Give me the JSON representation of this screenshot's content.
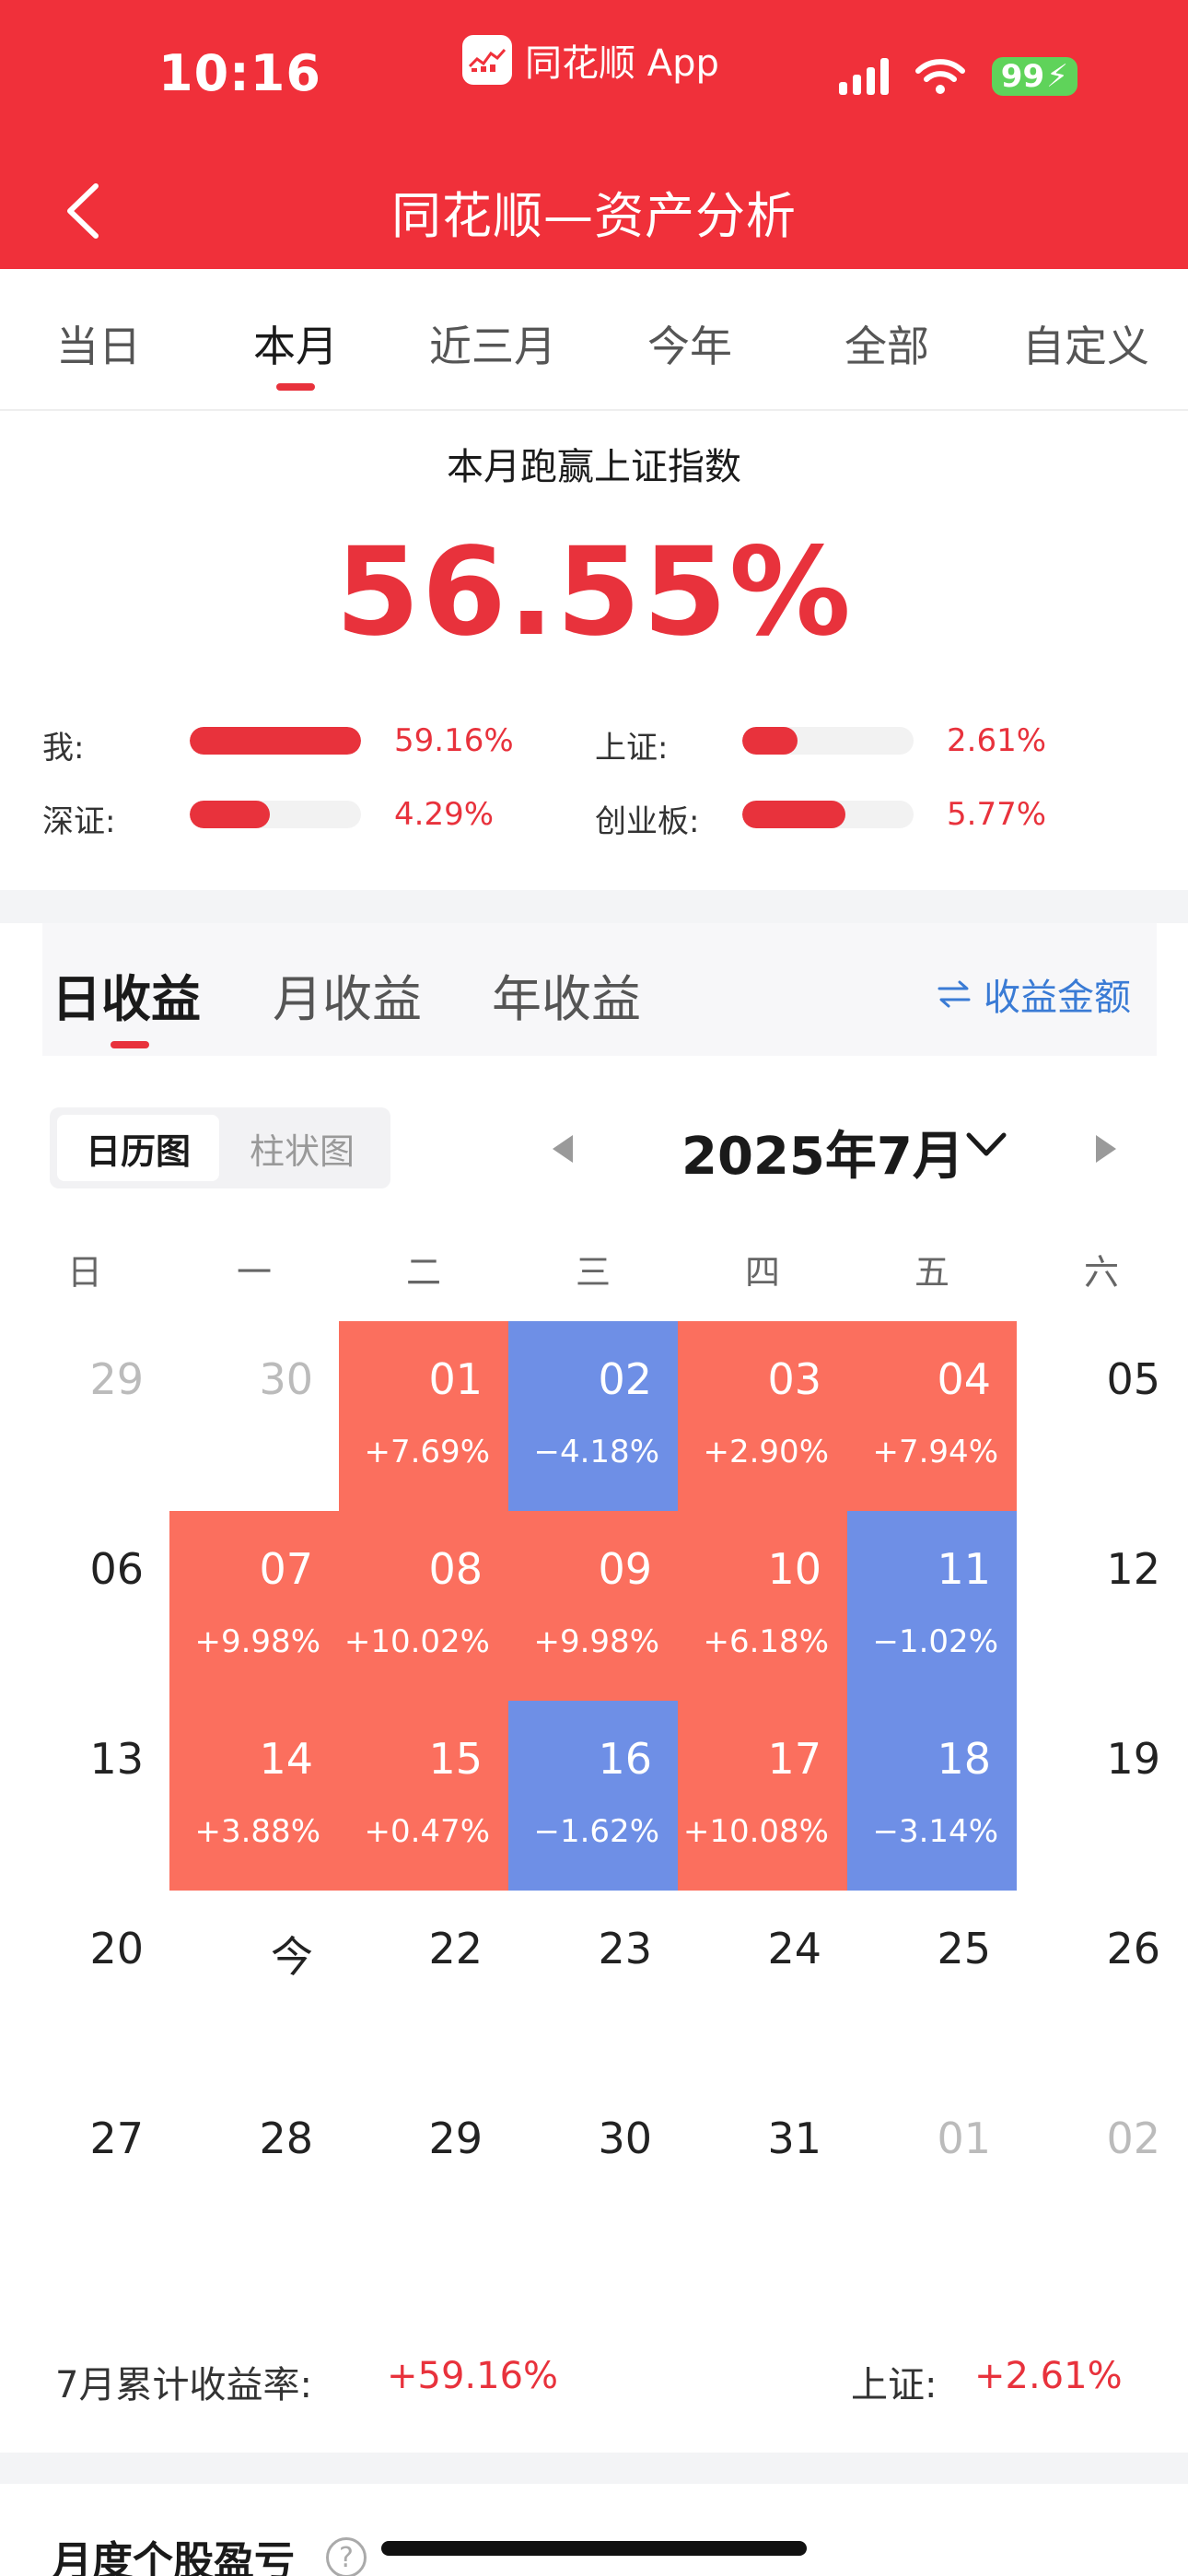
{
  "status_bar": {
    "time": "10:16",
    "app_name": "同花顺 App",
    "battery": "99"
  },
  "nav": {
    "title": "同花顺—资产分析"
  },
  "period_tabs": [
    {
      "label": "当日"
    },
    {
      "label": "本月"
    },
    {
      "label": "近三月"
    },
    {
      "label": "今年"
    },
    {
      "label": "全部"
    },
    {
      "label": "自定义"
    }
  ],
  "period_active": "本月",
  "comparison": {
    "title": "本月跑赢上证指数",
    "headline": "56.55%",
    "items": [
      {
        "label": "我:",
        "value": "59.16%",
        "level": 1.0
      },
      {
        "label": "上证:",
        "value": "2.61%",
        "level": 0.32
      },
      {
        "label": "深证:",
        "value": "4.29%",
        "level": 0.47
      },
      {
        "label": "创业板:",
        "value": "5.77%",
        "level": 0.6
      }
    ]
  },
  "earnings_tabs": [
    {
      "label": "日收益"
    },
    {
      "label": "月收益"
    },
    {
      "label": "年收益"
    }
  ],
  "earnings_active": "日收益",
  "toggle_label": "收益金额",
  "view_switch": [
    {
      "label": "日历图"
    },
    {
      "label": "柱状图"
    }
  ],
  "view_active": "日历图",
  "month_label": "2025年7月",
  "weekdays": [
    "日",
    "一",
    "二",
    "三",
    "四",
    "五",
    "六"
  ],
  "calendar": [
    [
      {
        "day": "29",
        "state": "muted"
      },
      {
        "day": "30",
        "state": "muted"
      },
      {
        "day": "01",
        "ret": "+7.69%",
        "state": "gain"
      },
      {
        "day": "02",
        "ret": "−4.18%",
        "state": "loss"
      },
      {
        "day": "03",
        "ret": "+2.90%",
        "state": "gain"
      },
      {
        "day": "04",
        "ret": "+7.94%",
        "state": "gain"
      },
      {
        "day": "05",
        "state": "plain"
      }
    ],
    [
      {
        "day": "06",
        "state": "plain"
      },
      {
        "day": "07",
        "ret": "+9.98%",
        "state": "gain"
      },
      {
        "day": "08",
        "ret": "+10.02%",
        "state": "gain"
      },
      {
        "day": "09",
        "ret": "+9.98%",
        "state": "gain"
      },
      {
        "day": "10",
        "ret": "+6.18%",
        "state": "gain"
      },
      {
        "day": "11",
        "ret": "−1.02%",
        "state": "loss"
      },
      {
        "day": "12",
        "state": "plain"
      }
    ],
    [
      {
        "day": "13",
        "state": "plain"
      },
      {
        "day": "14",
        "ret": "+3.88%",
        "state": "gain"
      },
      {
        "day": "15",
        "ret": "+0.47%",
        "state": "gain"
      },
      {
        "day": "16",
        "ret": "−1.62%",
        "state": "loss"
      },
      {
        "day": "17",
        "ret": "+10.08%",
        "state": "gain"
      },
      {
        "day": "18",
        "ret": "−3.14%",
        "state": "loss"
      },
      {
        "day": "19",
        "state": "plain"
      }
    ],
    [
      {
        "day": "20",
        "state": "plain"
      },
      {
        "day": "今",
        "state": "today"
      },
      {
        "day": "22",
        "state": "plain"
      },
      {
        "day": "23",
        "state": "plain"
      },
      {
        "day": "24",
        "state": "plain"
      },
      {
        "day": "25",
        "state": "plain"
      },
      {
        "day": "26",
        "state": "plain"
      }
    ],
    [
      {
        "day": "27",
        "state": "plain"
      },
      {
        "day": "28",
        "state": "plain"
      },
      {
        "day": "29",
        "state": "plain"
      },
      {
        "day": "30",
        "state": "plain"
      },
      {
        "day": "31",
        "state": "plain"
      },
      {
        "day": "01",
        "state": "muted"
      },
      {
        "day": "02",
        "state": "muted"
      }
    ]
  ],
  "summary": {
    "month_label": "7月累计收益率:",
    "month_value": "+59.16%",
    "index_label": "上证:",
    "index_value": "+2.61%"
  },
  "bottom_section": {
    "title": "月度个股盈亏"
  },
  "colors": {
    "brand_red": "#f0303a",
    "gain": "#fb6f5e",
    "loss": "#6e8fe6",
    "link_blue": "#3a7bd5"
  }
}
